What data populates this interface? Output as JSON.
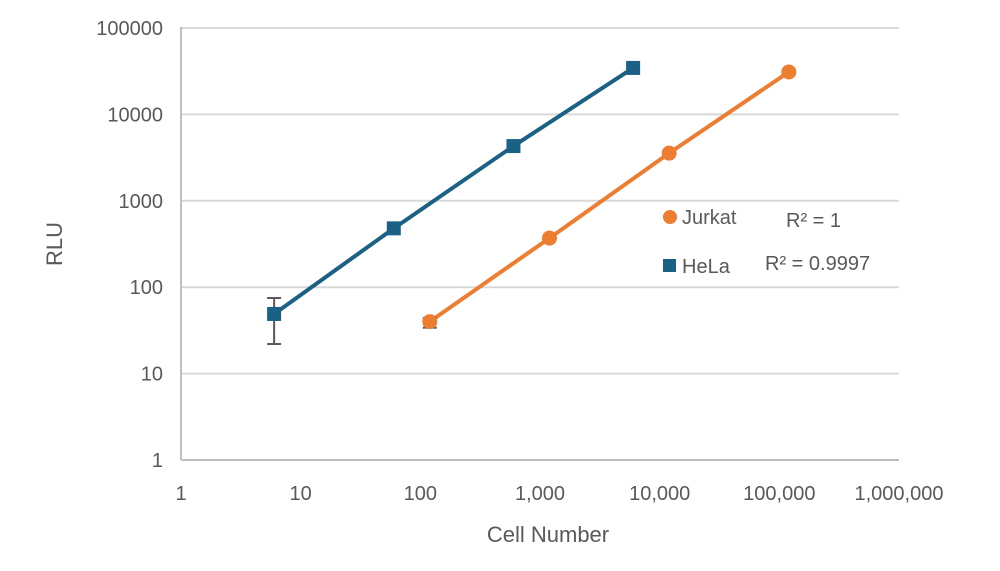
{
  "chart_data": {
    "type": "scatter",
    "title": "",
    "xlabel": "Cell Number",
    "ylabel": "RLU",
    "xscale": "log",
    "yscale": "log",
    "xlim": [
      1,
      1000000
    ],
    "ylim": [
      1,
      100000
    ],
    "x_ticks": [
      "1",
      "10",
      "100",
      "1,000",
      "10,000",
      "100,000",
      "1,000,000"
    ],
    "y_ticks": [
      "1",
      "10",
      "100",
      "1000",
      "10000",
      "100000"
    ],
    "grid": {
      "horizontal": true,
      "vertical": false
    },
    "legend_position": "inside-right",
    "series": [
      {
        "name": "Jurkat",
        "marker": "circle",
        "color": "#ED7D31",
        "r_squared": "R² = 1",
        "x": [
          120,
          1200,
          12000,
          120000
        ],
        "y": [
          40,
          370,
          3560,
          31000
        ],
        "error_low": [
          34,
          null,
          null,
          null
        ],
        "error_high": [
          44,
          null,
          null,
          null
        ]
      },
      {
        "name": "HeLa",
        "marker": "square",
        "color": "#1B6185",
        "r_squared": "R² = 0.9997",
        "x": [
          6,
          60,
          600,
          6000
        ],
        "y": [
          49,
          480,
          4300,
          34500
        ],
        "error_low": [
          22,
          null,
          null,
          null
        ],
        "error_high": [
          75,
          null,
          null,
          null
        ]
      }
    ]
  },
  "axes": {
    "x_title": "Cell Number",
    "y_title": "RLU",
    "x_tick_labels": [
      "1",
      "10",
      "100",
      "1,000",
      "10,000",
      "100,000",
      "1,000,000"
    ],
    "y_tick_labels": [
      "1",
      "10",
      "100",
      "1000",
      "10000",
      "100000"
    ]
  },
  "legend": {
    "items": [
      {
        "label": "Jurkat",
        "r2": "R² = 1",
        "color": "#ED7D31"
      },
      {
        "label": "HeLa",
        "r2": "R² = 0.9997",
        "color": "#1B6185"
      }
    ]
  },
  "colors": {
    "grid": "#D9D9D9",
    "axis": "#BFBFBF",
    "text": "#595959",
    "error_bar": "#595959"
  }
}
